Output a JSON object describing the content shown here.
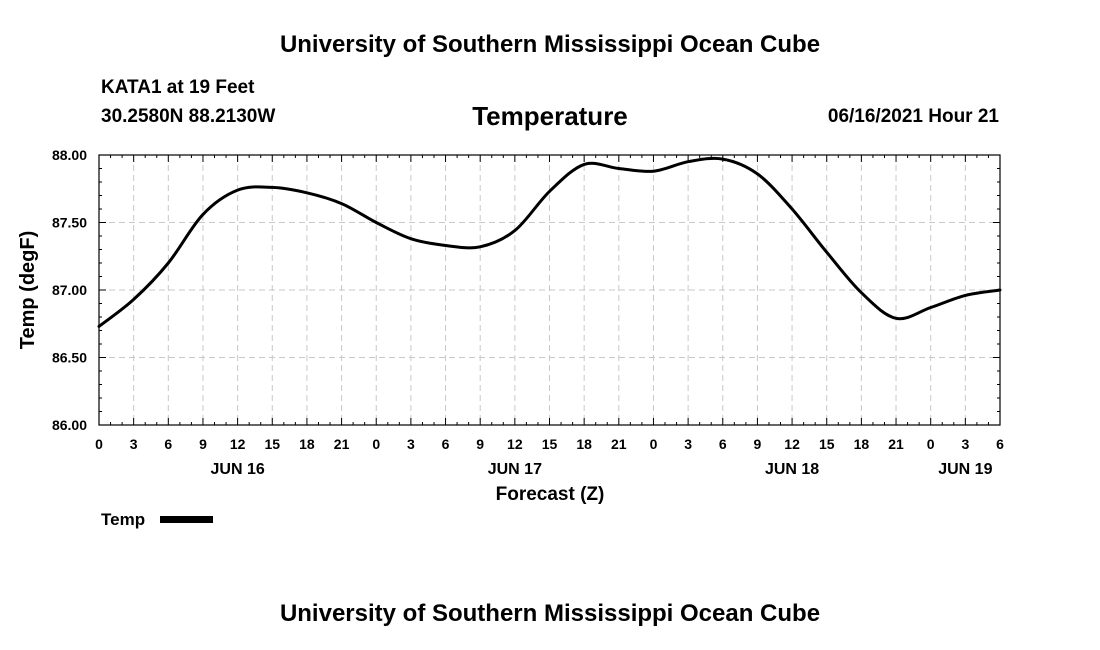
{
  "header": {
    "title": "University of Southern Mississippi Ocean Cube",
    "station": "KATA1 at 19 Feet",
    "coords": "30.2580N  88.2130W",
    "variable": "Temperature",
    "datetime": "06/16/2021 Hour 21"
  },
  "footer": {
    "title": "University of Southern Mississippi Ocean Cube"
  },
  "legend": {
    "label": "Temp"
  },
  "colors": {
    "line": "#000000",
    "grid": "#c8c8c8"
  },
  "chart_data": {
    "type": "line",
    "title": "Temperature",
    "xlabel": "Forecast (Z)",
    "ylabel": "Temp (degF)",
    "xlim": [
      0,
      78
    ],
    "ylim": [
      86.0,
      88.0
    ],
    "y_ticks": [
      "86.00",
      "86.50",
      "87.00",
      "87.50",
      "88.00"
    ],
    "x_tick_labels": [
      "0",
      "3",
      "6",
      "9",
      "12",
      "15",
      "18",
      "21",
      "0",
      "3",
      "6",
      "9",
      "12",
      "15",
      "18",
      "21",
      "0",
      "3",
      "6",
      "9",
      "12",
      "15",
      "18",
      "21",
      "0",
      "3",
      "6"
    ],
    "date_labels": [
      {
        "hour": 12,
        "label": "JUN 16"
      },
      {
        "hour": 36,
        "label": "JUN 17"
      },
      {
        "hour": 60,
        "label": "JUN 18"
      },
      {
        "hour": 75,
        "label": "JUN 19"
      }
    ],
    "series": [
      {
        "name": "Temp",
        "x": [
          0,
          3,
          6,
          9,
          12,
          15,
          18,
          21,
          24,
          27,
          30,
          33,
          36,
          39,
          42,
          45,
          48,
          51,
          54,
          57,
          60,
          63,
          66,
          69,
          72,
          75,
          78
        ],
        "y": [
          86.73,
          86.93,
          87.2,
          87.56,
          87.74,
          87.76,
          87.72,
          87.64,
          87.5,
          87.38,
          87.33,
          87.32,
          87.44,
          87.73,
          87.93,
          87.9,
          87.88,
          87.95,
          87.97,
          87.86,
          87.6,
          87.28,
          86.98,
          86.79,
          86.87,
          86.96,
          87.0
        ]
      }
    ]
  }
}
